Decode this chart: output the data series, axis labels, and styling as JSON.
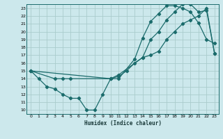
{
  "xlabel": "Humidex (Indice chaleur)",
  "bg_color": "#cce8ec",
  "grid_color": "#aacccc",
  "line_color": "#1a6b6b",
  "xlim": [
    -0.5,
    23.5
  ],
  "ylim": [
    9.5,
    23.5
  ],
  "xticks": [
    0,
    1,
    2,
    3,
    4,
    5,
    6,
    7,
    8,
    9,
    10,
    11,
    12,
    13,
    14,
    15,
    16,
    17,
    18,
    19,
    20,
    21,
    22,
    23
  ],
  "yticks": [
    10,
    11,
    12,
    13,
    14,
    15,
    16,
    17,
    18,
    19,
    20,
    21,
    22,
    23
  ],
  "line1_x": [
    0,
    1,
    2,
    3,
    4,
    5,
    6,
    7,
    8,
    9,
    10,
    11,
    13,
    14,
    15,
    16,
    17,
    18,
    19,
    20,
    21,
    22,
    23
  ],
  "line1_y": [
    15,
    14,
    13,
    12.7,
    12,
    11.5,
    11.5,
    10,
    10,
    12,
    14,
    14,
    16.5,
    19.2,
    21.3,
    22.3,
    23.3,
    23.3,
    23.0,
    22.5,
    21.1,
    19,
    18.5
  ],
  "line2_x": [
    0,
    3,
    4,
    5,
    10,
    11,
    14,
    15,
    16,
    17,
    18,
    19,
    20,
    21,
    22,
    23
  ],
  "line2_y": [
    15,
    14,
    14,
    14,
    14,
    14.5,
    16.7,
    19.0,
    20.0,
    21.5,
    22.5,
    23.5,
    23.5,
    22.5,
    22.7,
    17.2
  ],
  "line3_x": [
    0,
    10,
    11,
    12,
    13,
    14,
    15,
    16,
    17,
    18,
    19,
    20,
    21,
    22,
    23
  ],
  "line3_y": [
    15,
    14,
    14.3,
    15.0,
    16.0,
    16.7,
    17.0,
    17.5,
    19.0,
    20.0,
    21.0,
    21.5,
    22.0,
    23.0,
    17.2
  ]
}
